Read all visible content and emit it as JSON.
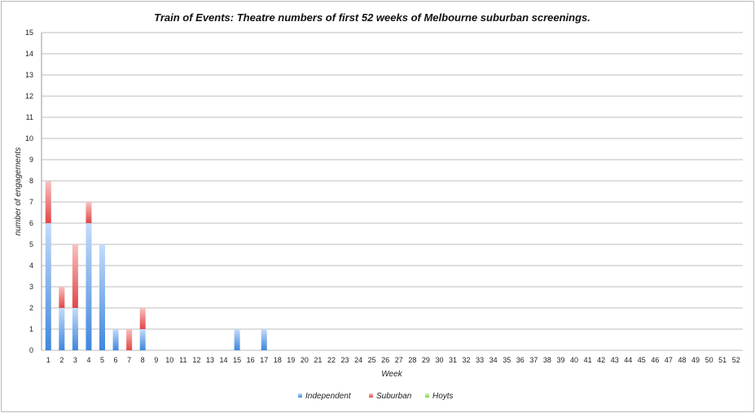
{
  "chart_data": {
    "type": "bar",
    "stacked": true,
    "title": "Train of Events: Theatre numbers of first 52 weeks of Melbourne suburban screenings.",
    "xlabel": "Week",
    "ylabel": "number of engagements",
    "ylim": [
      0,
      15
    ],
    "yticks": [
      "0",
      "1",
      "2",
      "3",
      "4",
      "5",
      "6",
      "7",
      "8",
      "9",
      "10",
      "11",
      "12",
      "13",
      "14",
      "15"
    ],
    "categories": [
      "1",
      "2",
      "3",
      "4",
      "5",
      "6",
      "7",
      "8",
      "9",
      "10",
      "11",
      "12",
      "13",
      "14",
      "15",
      "16",
      "17",
      "18",
      "19",
      "20",
      "21",
      "22",
      "23",
      "24",
      "25",
      "26",
      "27",
      "28",
      "29",
      "30",
      "31",
      "32",
      "33",
      "34",
      "35",
      "36",
      "37",
      "38",
      "39",
      "40",
      "41",
      "42",
      "43",
      "44",
      "45",
      "46",
      "47",
      "48",
      "49",
      "50",
      "51",
      "52"
    ],
    "series": [
      {
        "name": "Independent",
        "color": "#4a90e2",
        "values": [
          6,
          2,
          2,
          6,
          5,
          1,
          0,
          1,
          0,
          0,
          0,
          0,
          0,
          0,
          1,
          0,
          1,
          0,
          0,
          0,
          0,
          0,
          0,
          0,
          0,
          0,
          0,
          0,
          0,
          0,
          0,
          0,
          0,
          0,
          0,
          0,
          0,
          0,
          0,
          0,
          0,
          0,
          0,
          0,
          0,
          0,
          0,
          0,
          0,
          0,
          0,
          0
        ]
      },
      {
        "name": "Suburban",
        "color": "#e84a4a",
        "values": [
          2,
          1,
          3,
          1,
          0,
          0,
          1,
          1,
          0,
          0,
          0,
          0,
          0,
          0,
          0,
          0,
          0,
          0,
          0,
          0,
          0,
          0,
          0,
          0,
          0,
          0,
          0,
          0,
          0,
          0,
          0,
          0,
          0,
          0,
          0,
          0,
          0,
          0,
          0,
          0,
          0,
          0,
          0,
          0,
          0,
          0,
          0,
          0,
          0,
          0,
          0,
          0
        ]
      },
      {
        "name": "Hoyts",
        "color": "#8fd14f",
        "values": [
          0,
          0,
          0,
          0,
          0,
          0,
          0,
          0,
          0,
          0,
          0,
          0,
          0,
          0,
          0,
          0,
          0,
          0,
          0,
          0,
          0,
          0,
          0,
          0,
          0,
          0,
          0,
          0,
          0,
          0,
          0,
          0,
          0,
          0,
          0,
          0,
          0,
          0,
          0,
          0,
          0,
          0,
          0,
          0,
          0,
          0,
          0,
          0,
          0,
          0,
          0,
          0
        ]
      }
    ],
    "grid": true,
    "legend_position": "bottom-center"
  }
}
